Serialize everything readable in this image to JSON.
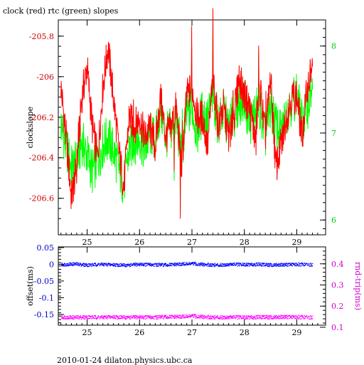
{
  "chart_data": [
    {
      "type": "line",
      "title": "clock (red) rtc (green) slopes",
      "ylabel": "clockslope",
      "x_ticks": [
        "25",
        "26",
        "27",
        "28",
        "29"
      ],
      "xlim": [
        24.45,
        29.55
      ],
      "ylim": [
        -206.78,
        -205.72
      ],
      "y_ticks": [
        "-205.8",
        "-206",
        "-206.2",
        "-206.4",
        "-206.6"
      ],
      "y2lim": [
        5.83,
        8.3
      ],
      "y2_ticks": [
        "8",
        "7",
        "6"
      ],
      "series": [
        {
          "color": "#ff0000",
          "axis": "left",
          "x": [
            24.5,
            24.6,
            24.7,
            24.8,
            24.9,
            25.0,
            25.1,
            25.2,
            25.3,
            25.4,
            25.5,
            25.6,
            25.7,
            25.8,
            25.9,
            26.0,
            26.1,
            26.2,
            26.3,
            26.4,
            26.5,
            26.6,
            26.7,
            26.8,
            26.9,
            27.0,
            27.1,
            27.2,
            27.3,
            27.4,
            27.5,
            27.6,
            27.7,
            27.8,
            27.9,
            28.0,
            28.1,
            28.2,
            28.3,
            28.4,
            28.5,
            28.6,
            28.7,
            28.8,
            28.9,
            29.0,
            29.1,
            29.2,
            29.3
          ],
          "values": [
            -206.05,
            -206.3,
            -206.6,
            -206.45,
            -206.1,
            -205.95,
            -206.25,
            -206.4,
            -206.05,
            -205.85,
            -206.1,
            -206.35,
            -206.55,
            -206.2,
            -206.25,
            -206.2,
            -206.3,
            -206.25,
            -206.35,
            -206.1,
            -206.3,
            -206.25,
            -206.15,
            -206.45,
            -206.1,
            -206.05,
            -206.2,
            -206.2,
            -206.35,
            -206.0,
            -206.25,
            -206.15,
            -206.3,
            -206.2,
            -206.0,
            -206.1,
            -206.15,
            -206.3,
            -206.05,
            -206.3,
            -206.0,
            -206.45,
            -206.35,
            -206.2,
            -206.1,
            -206.1,
            -206.3,
            -206.05,
            -205.95
          ]
        },
        {
          "color": "#00ff00",
          "axis": "right",
          "x": [
            24.5,
            24.6,
            24.7,
            24.8,
            24.9,
            25.0,
            25.1,
            25.2,
            25.3,
            25.4,
            25.5,
            25.6,
            25.7,
            25.8,
            25.9,
            26.0,
            26.1,
            26.2,
            26.3,
            26.4,
            26.5,
            26.6,
            26.7,
            26.8,
            26.9,
            27.0,
            27.1,
            27.2,
            27.3,
            27.4,
            27.5,
            27.6,
            27.7,
            27.8,
            27.9,
            28.0,
            28.1,
            28.2,
            28.3,
            28.4,
            28.5,
            28.6,
            28.7,
            28.8,
            28.9,
            29.0,
            29.1,
            29.2,
            29.3
          ],
          "values": [
            7.1,
            6.85,
            6.6,
            6.65,
            6.9,
            6.75,
            6.55,
            6.7,
            6.85,
            6.95,
            6.8,
            6.6,
            6.4,
            6.8,
            6.9,
            6.95,
            6.8,
            7.0,
            6.9,
            7.3,
            6.95,
            7.05,
            7.15,
            6.75,
            7.2,
            7.3,
            7.0,
            7.25,
            7.15,
            7.45,
            7.1,
            7.25,
            7.05,
            7.2,
            7.35,
            7.4,
            7.1,
            7.25,
            7.3,
            6.95,
            7.3,
            7.1,
            6.95,
            7.25,
            7.35,
            7.45,
            7.1,
            7.3,
            7.5
          ]
        }
      ]
    },
    {
      "type": "scatter",
      "ylabel": "offset(ms)",
      "y2label": "rnd-trip(ms)",
      "x_ticks": [
        "25",
        "26",
        "27",
        "28",
        "29"
      ],
      "xlim": [
        24.45,
        29.55
      ],
      "ylim": [
        -0.182,
        0.052
      ],
      "y_ticks": [
        "0.05",
        "0",
        "-0.05",
        "-0.1",
        "-0.15"
      ],
      "y2lim": [
        0.11,
        0.48
      ],
      "y2_ticks": [
        "0.4",
        "0.3",
        "0.2",
        "0.1"
      ],
      "series": [
        {
          "color": "#0000ff",
          "axis": "left",
          "x": [
            24.5,
            24.75,
            25.0,
            25.25,
            25.5,
            25.75,
            26.0,
            26.25,
            26.5,
            26.75,
            27.0,
            27.25,
            27.5,
            27.75,
            28.0,
            28.25,
            28.5,
            28.75,
            29.0,
            29.3
          ],
          "values": [
            0.0,
            0.002,
            -0.001,
            0.001,
            0.0,
            -0.002,
            0.001,
            0.0,
            -0.001,
            0.001,
            0.003,
            0.0,
            -0.001,
            0.001,
            0.0,
            0.001,
            -0.001,
            0.0,
            0.001,
            0.0
          ]
        },
        {
          "color": "#ff00ff",
          "axis": "right",
          "x": [
            24.5,
            24.75,
            25.0,
            25.25,
            25.5,
            25.75,
            26.0,
            26.25,
            26.5,
            26.75,
            27.0,
            27.25,
            27.5,
            27.75,
            28.0,
            28.25,
            28.5,
            28.75,
            29.0,
            29.3
          ],
          "values": [
            0.15,
            0.148,
            0.15,
            0.149,
            0.151,
            0.148,
            0.15,
            0.149,
            0.15,
            0.151,
            0.155,
            0.15,
            0.149,
            0.15,
            0.148,
            0.15,
            0.149,
            0.151,
            0.15,
            0.149
          ]
        }
      ]
    }
  ],
  "footer": "2010-01-24 dilaton.physics.ubc.ca"
}
